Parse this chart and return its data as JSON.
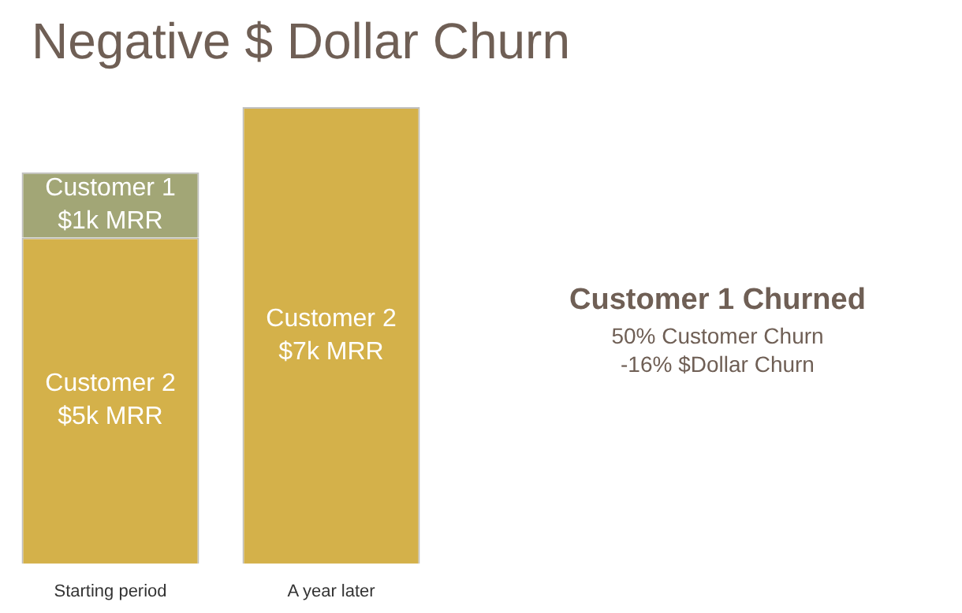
{
  "chart_data": {
    "type": "bar",
    "title": "Negative $ Dollar Churn",
    "categories": [
      "Starting period",
      "A year later"
    ],
    "stacked": true,
    "series": [
      {
        "name": "Customer 2",
        "color": "#d4b14a",
        "values": [
          5,
          7
        ],
        "value_labels": [
          "$5k MRR",
          "$7k MRR"
        ]
      },
      {
        "name": "Customer 1",
        "color": "#a2a676",
        "values": [
          1,
          null
        ],
        "value_labels": [
          "$1k MRR",
          null
        ]
      }
    ],
    "annotations": [
      "Customer 1 Churned",
      "50% Customer Churn",
      "-16% $Dollar Churn"
    ],
    "grid": false,
    "legend": false,
    "tick_labels": "x"
  }
}
